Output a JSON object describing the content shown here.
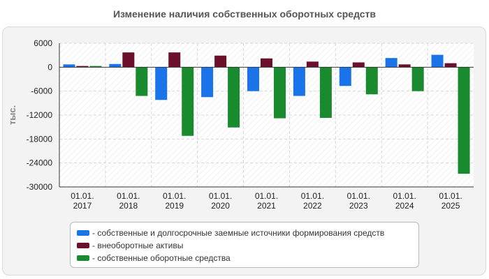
{
  "chart_data": {
    "type": "bar",
    "title": "Изменение наличия собственных оборотных средств",
    "ylabel": "тыс.",
    "xlabel": "",
    "ylim": [
      -30000,
      6000
    ],
    "yticks": [
      6000,
      0,
      -6000,
      -12000,
      -18000,
      -24000,
      -30000
    ],
    "grid": true,
    "legend_position": "bottom",
    "categories": [
      [
        "01.01.",
        "2017"
      ],
      [
        "01.01.",
        "2018"
      ],
      [
        "01.01.",
        "2019"
      ],
      [
        "01.01.",
        "2020"
      ],
      [
        "01.01.",
        "2021"
      ],
      [
        "01.01.",
        "2022"
      ],
      [
        "01.01.",
        "2023"
      ],
      [
        "01.01.",
        "2024"
      ],
      [
        "01.01.",
        "2025"
      ]
    ],
    "series": [
      {
        "name": "- собственные и долгосрочные заемные источники формирования средств",
        "color": "#1a73e8",
        "values": [
          700,
          800,
          -8200,
          -7500,
          -6000,
          -7200,
          -4700,
          2300,
          3100
        ]
      },
      {
        "name": "- внеоборотные активы",
        "color": "#6b0f2b",
        "values": [
          300,
          3700,
          3700,
          2900,
          2200,
          1400,
          1200,
          700,
          1000
        ]
      },
      {
        "name": "- собственные оборотные средства",
        "color": "#1a8a2e",
        "values": [
          300,
          -7200,
          -17200,
          -15100,
          -12800,
          -12700,
          -6800,
          -6000,
          -26700
        ]
      }
    ]
  }
}
